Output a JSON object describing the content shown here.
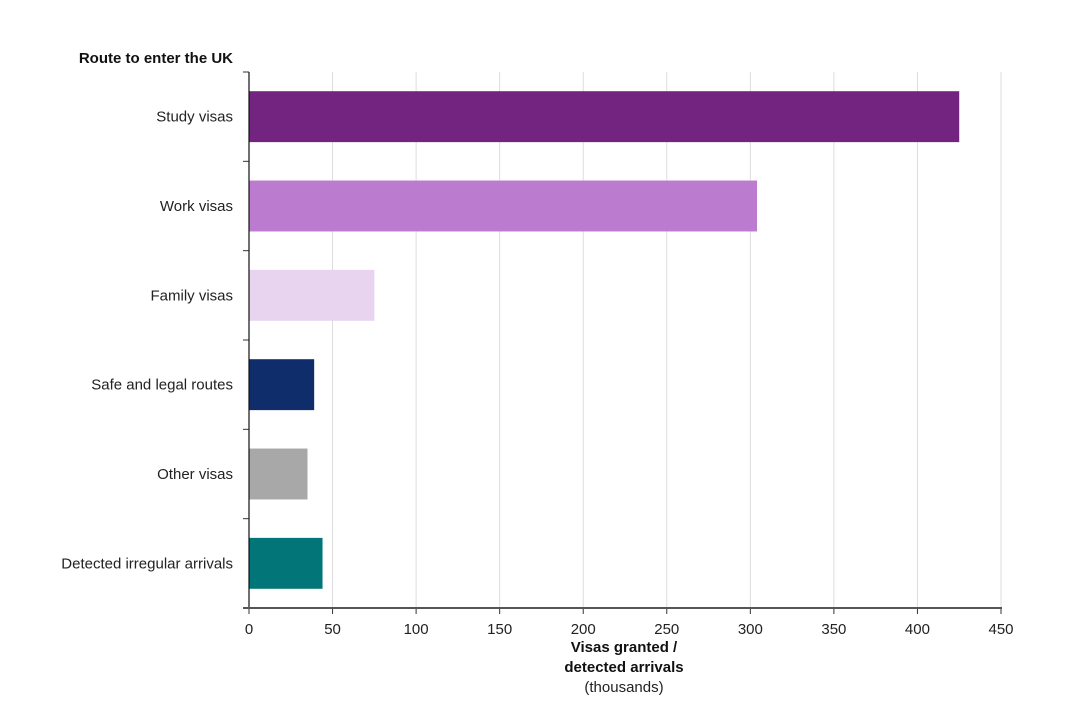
{
  "chart_data": {
    "type": "bar",
    "orientation": "horizontal",
    "y_title": "Route to enter the UK",
    "xlabel_line1": "Visas granted /",
    "xlabel_line2": "detected arrivals",
    "xlabel_units": "(thousands)",
    "xlim": [
      0,
      450
    ],
    "xticks": [
      "0",
      "50",
      "100",
      "150",
      "200",
      "250",
      "300",
      "350",
      "400",
      "450"
    ],
    "grid": true,
    "categories": [
      "Study visas",
      "Work visas",
      "Family visas",
      "Safe and legal routes",
      "Other visas",
      "Detected irregular arrivals"
    ],
    "values": [
      425,
      304,
      75,
      39,
      35,
      44
    ],
    "colors": [
      "#722480",
      "#bb7ccf",
      "#e8d4ef",
      "#0f2c6b",
      "#a8a8a8",
      "#017578"
    ]
  }
}
